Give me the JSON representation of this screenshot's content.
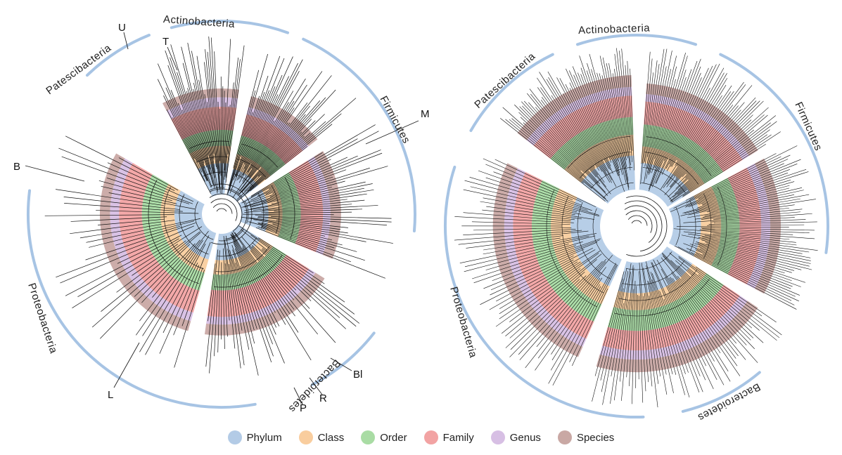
{
  "colors": {
    "phylum": "#b3cbe6",
    "class": "#f9cd9e",
    "order": "#a9dca4",
    "family": "#f2a3a3",
    "genus": "#d7bfe4",
    "species": "#c9a8a4",
    "ring": "#a7c4e4",
    "branch": "#111111"
  },
  "legend": [
    {
      "label": "Phylum",
      "color": "#b3cbe6"
    },
    {
      "label": "Class",
      "color": "#f9cd9e"
    },
    {
      "label": "Order",
      "color": "#a9dca4"
    },
    {
      "label": "Family",
      "color": "#f2a3a3"
    },
    {
      "label": "Genus",
      "color": "#d7bfe4"
    },
    {
      "label": "Species",
      "color": "#c9a8a4"
    }
  ],
  "left_tree": {
    "phyla": [
      "Patescibacteria",
      "Actinobacteria",
      "Firmicutes",
      "Bacteroidetes",
      "Proteobacteria"
    ],
    "markers": [
      "U",
      "T",
      "M",
      "B",
      "L",
      "P",
      "R",
      "Bl"
    ]
  },
  "right_tree": {
    "phyla": [
      "Patescibacteria",
      "Actinobacteria",
      "Firmicutes",
      "Bacteroidetes",
      "Proteobacteria"
    ]
  }
}
